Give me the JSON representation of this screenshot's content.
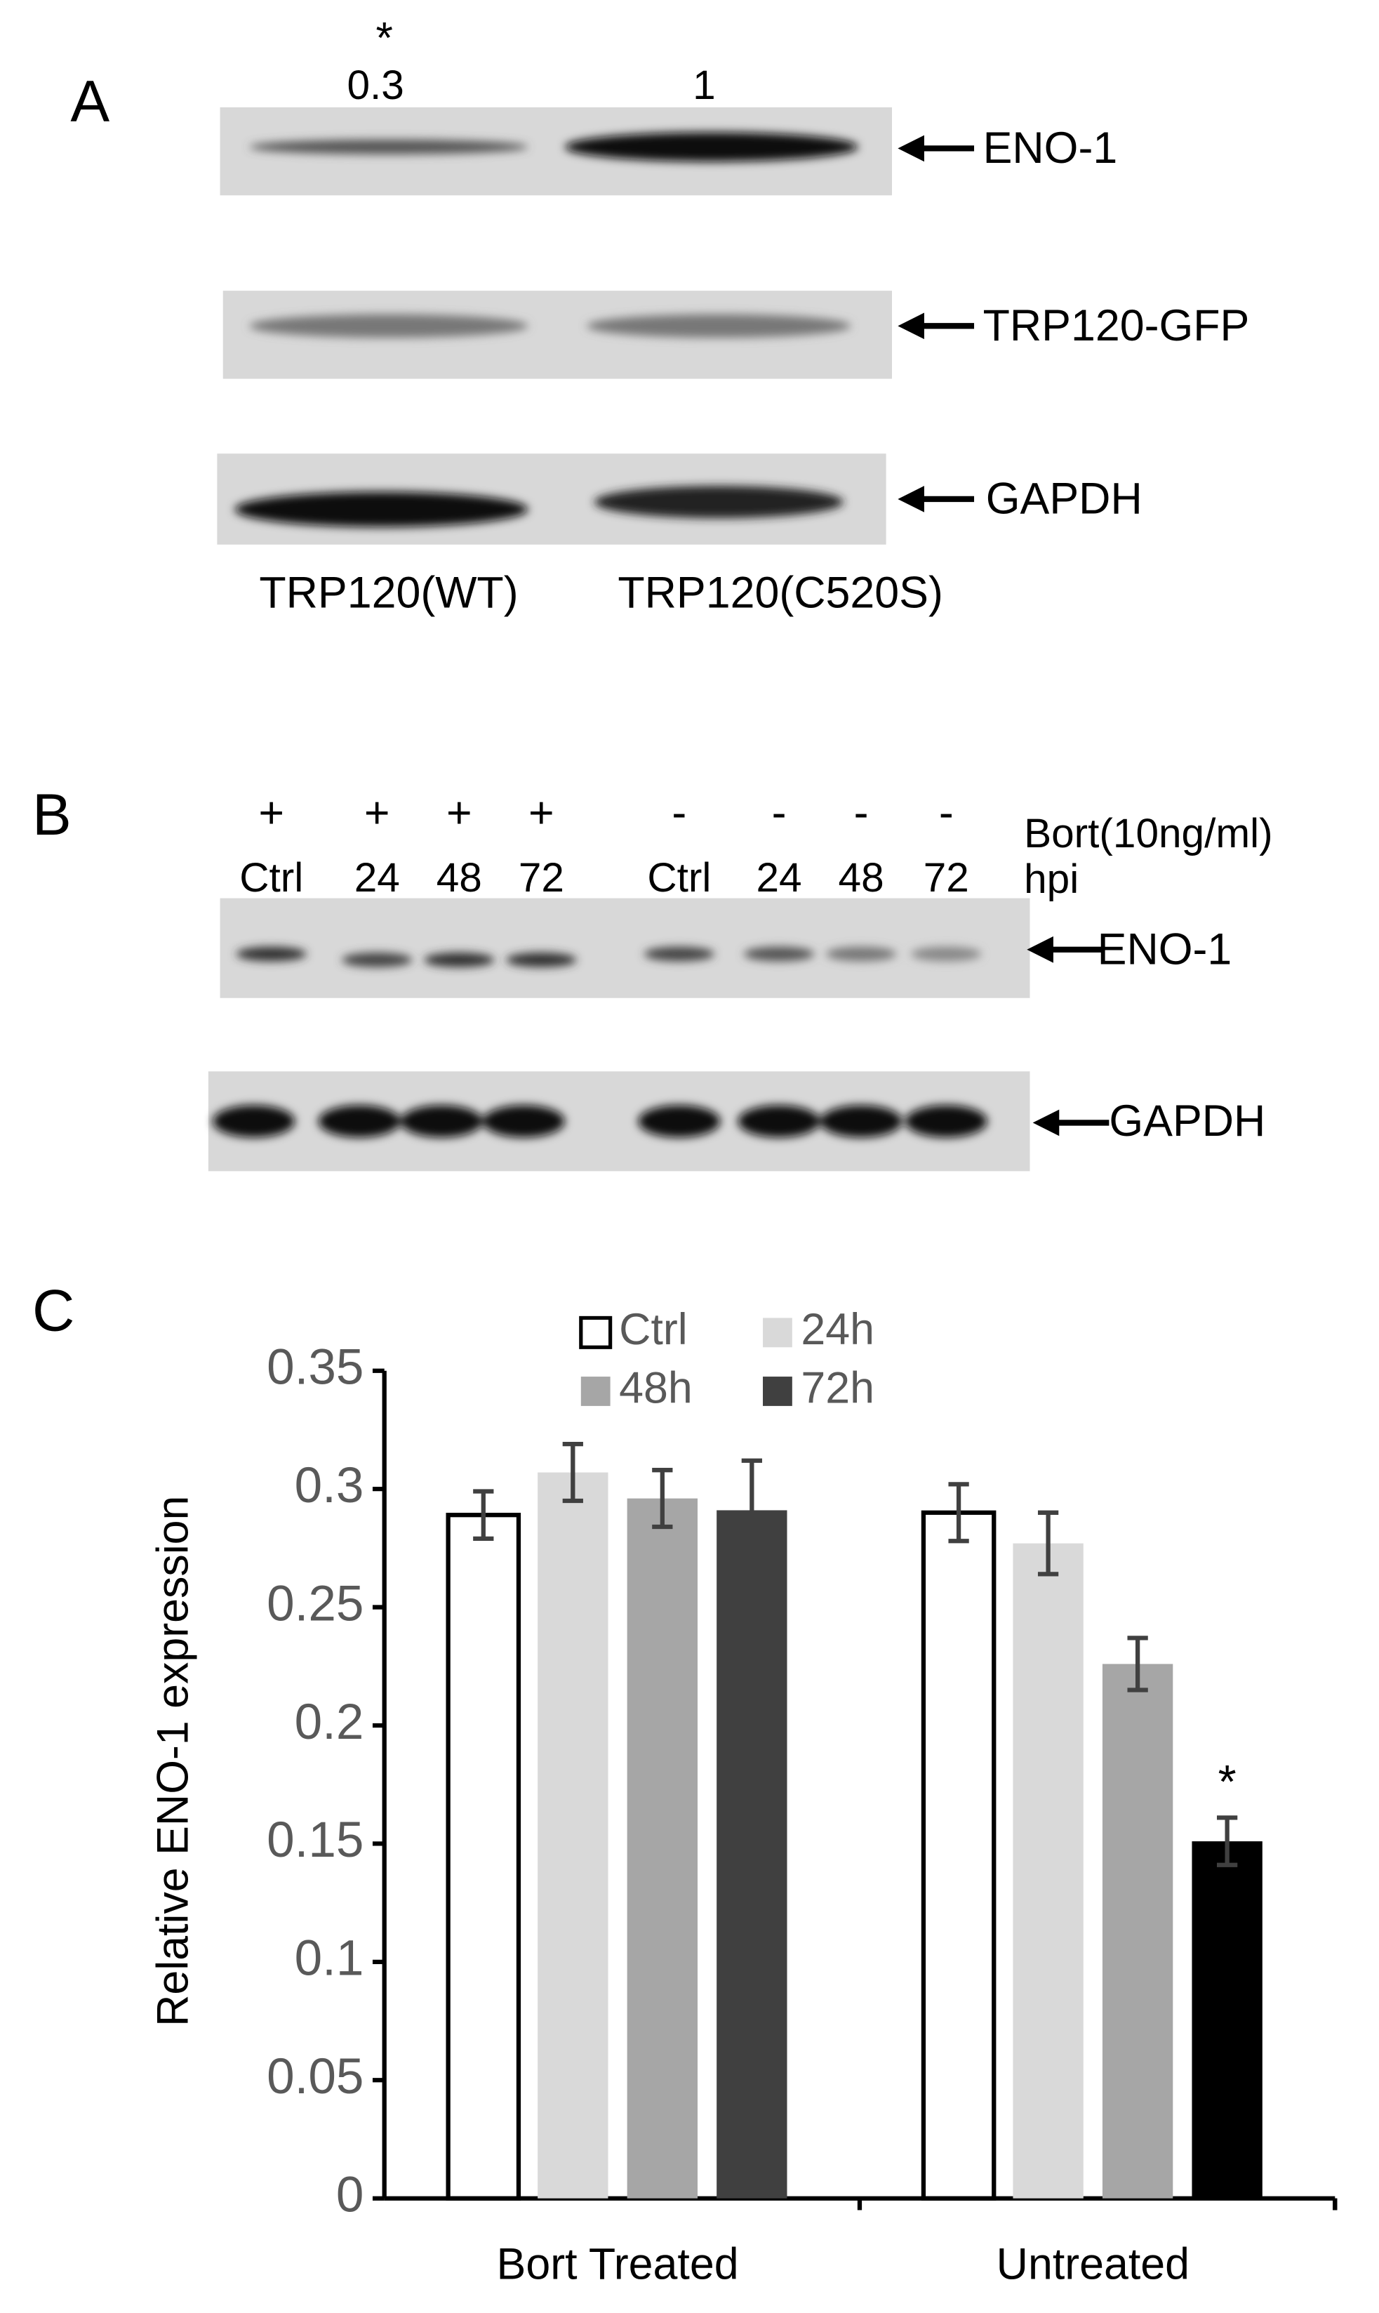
{
  "panel_a": {
    "label": "A",
    "significance": "*",
    "quantification": [
      0.3,
      1
    ],
    "bands": [
      "ENO-1",
      "TRP120-GFP",
      "GAPDH"
    ],
    "lanes": [
      "TRP120(WT)",
      "TRP120(C520S)"
    ]
  },
  "panel_b": {
    "label": "B",
    "treatment": [
      "+",
      "+",
      "+",
      "+",
      "-",
      "-",
      "-",
      "-"
    ],
    "lanes": [
      "Ctrl",
      "24",
      "48",
      "72",
      "Ctrl",
      "24",
      "48",
      "72"
    ],
    "treatment_label": "Bort(10ng/ml)",
    "time_label": "hpi",
    "bands": [
      "ENO-1",
      "GAPDH"
    ]
  },
  "chart_data": {
    "type": "bar",
    "panel_label": "C",
    "y_label": "Relative ENO-1 expression",
    "categories": [
      "Bort Treated",
      "Untreated"
    ],
    "series": [
      {
        "name": "Ctrl",
        "color": "#ffffff",
        "values": [
          0.289,
          0.29
        ],
        "errors": [
          0.01,
          0.012
        ]
      },
      {
        "name": "24h",
        "color": "#d9d9d9",
        "values": [
          0.307,
          0.277
        ],
        "errors": [
          0.012,
          0.013
        ]
      },
      {
        "name": "48h",
        "color": "#a6a6a6",
        "values": [
          0.296,
          0.226
        ],
        "errors": [
          0.012,
          0.011
        ]
      },
      {
        "name": "72h",
        "color": "#404040",
        "point_colors": [
          "#404040",
          "#000000"
        ],
        "values": [
          0.291,
          0.151
        ],
        "errors": [
          0.021,
          0.01
        ],
        "significance": [
          null,
          "*"
        ]
      }
    ],
    "ylim": [
      0,
      0.35
    ],
    "yticks": [
      0,
      0.05,
      0.1,
      0.15,
      0.2,
      0.25,
      0.3,
      0.35
    ]
  }
}
